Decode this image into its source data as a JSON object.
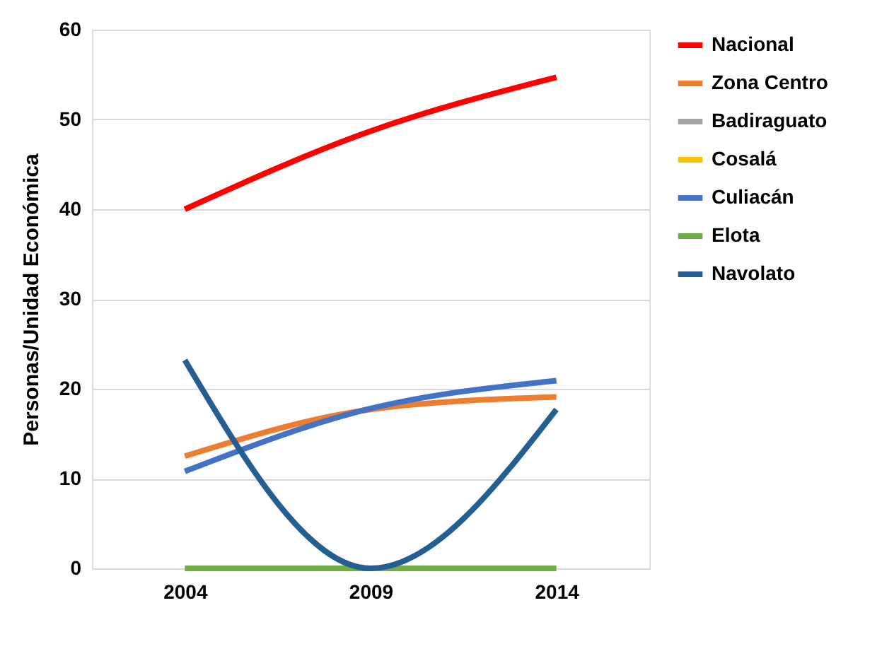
{
  "chart_data": {
    "type": "line",
    "ylabel": "Personas/Unidad Económica",
    "categories": [
      "2004",
      "2009",
      "2014"
    ],
    "series": [
      {
        "name": "Nacional",
        "color": "#ff0000",
        "values": [
          40.0,
          48.7,
          54.7
        ]
      },
      {
        "name": "Zona Centro",
        "color": "#ed7d31",
        "values": [
          12.5,
          17.7,
          19.1
        ]
      },
      {
        "name": "Badiraguato",
        "color": "#a5a5a5",
        "values": [
          null,
          null,
          null
        ]
      },
      {
        "name": "Cosalá",
        "color": "#ffc000",
        "values": [
          null,
          null,
          null
        ]
      },
      {
        "name": "Culiacán",
        "color": "#4472c4",
        "values": [
          10.8,
          17.8,
          20.9
        ]
      },
      {
        "name": "Elota",
        "color": "#70ad47",
        "values": [
          0,
          0,
          0
        ]
      },
      {
        "name": "Navolato",
        "color": "#255e91",
        "values": [
          23.2,
          0,
          17.7
        ]
      }
    ],
    "ylim": [
      0,
      60
    ],
    "yticks": [
      0,
      10,
      20,
      30,
      40,
      50,
      60
    ],
    "grid": "y",
    "legend": "right",
    "marker": "none",
    "line_style": "solid"
  }
}
